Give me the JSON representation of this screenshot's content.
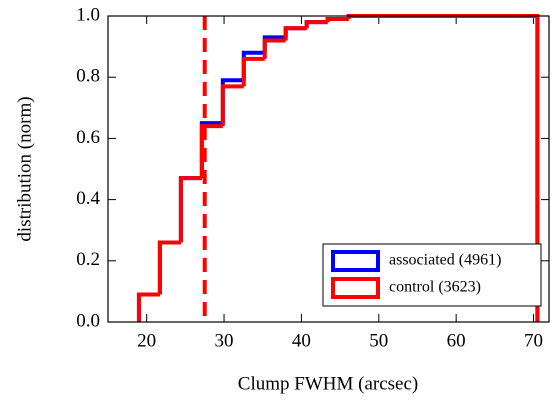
{
  "chart_data": {
    "type": "step-histogram",
    "xlabel": "Clump FWHM (arcsec)",
    "ylabel": "distribution (norm)",
    "xlim": [
      15,
      72
    ],
    "ylim": [
      0,
      1
    ],
    "xticks": [
      20,
      30,
      40,
      50,
      60,
      70
    ],
    "yticks": [
      {
        "value": 0,
        "label": "0.0"
      },
      0.2,
      0.4,
      0.6,
      0.8,
      {
        "value": 1,
        "label": "1.0"
      }
    ],
    "bins": [
      19,
      21.71,
      24.42,
      27.13,
      29.84,
      32.55,
      35.26,
      37.97,
      40.68,
      43.39,
      46.11,
      48.82,
      51.53,
      54.24,
      56.95,
      59.66,
      62.37,
      65.08,
      67.79,
      70.5
    ],
    "series": [
      {
        "name": "associated (4961)",
        "color": "#0000ff",
        "values": [
          0.09,
          0.26,
          0.47,
          0.65,
          0.79,
          0.88,
          0.93,
          0.96,
          0.98,
          0.99,
          1,
          1,
          1,
          1,
          1,
          1,
          1,
          1,
          1
        ]
      },
      {
        "name": "control (3623)",
        "color": "#ff0000",
        "values": [
          0.09,
          0.26,
          0.47,
          0.64,
          0.77,
          0.86,
          0.92,
          0.96,
          0.98,
          0.99,
          1,
          1,
          1,
          1,
          1,
          1,
          1,
          1,
          1
        ]
      }
    ],
    "vline": {
      "x": 27.5,
      "color": "#ff0000"
    },
    "legend": "lower right"
  }
}
